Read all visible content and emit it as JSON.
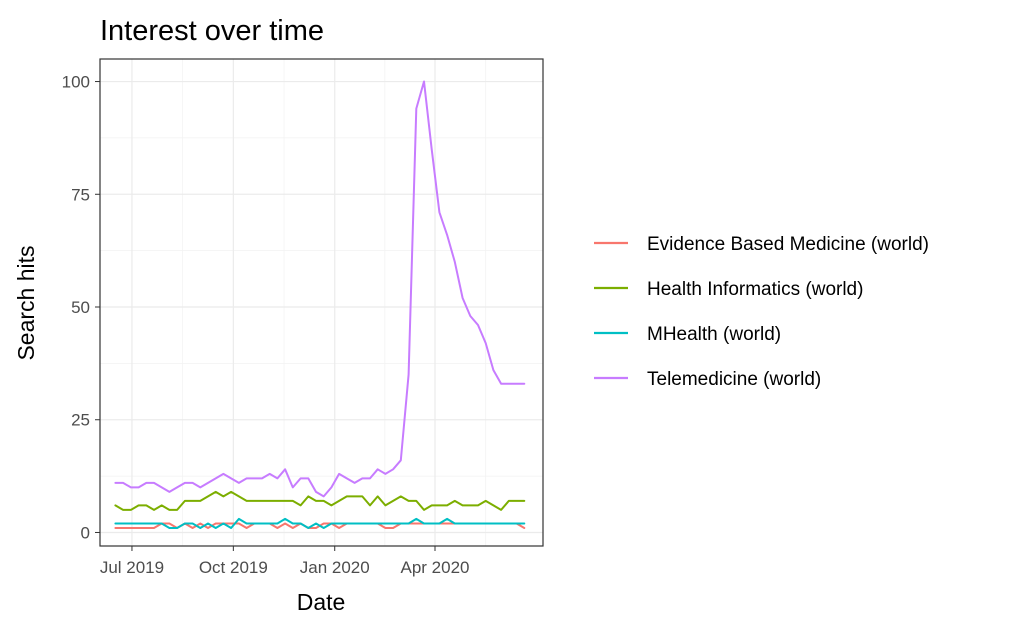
{
  "chart_data": {
    "type": "line",
    "title": "Interest over time",
    "xlabel": "Date",
    "ylabel": "Search hits",
    "xlim": [
      "2019-06-02",
      "2020-07-08"
    ],
    "ylim": [
      -3,
      105
    ],
    "grid": true,
    "legend_position": "right",
    "x_ticks": [
      {
        "date": "2019-07-01",
        "label": "Jul 2019"
      },
      {
        "date": "2019-10-01",
        "label": "Oct 2019"
      },
      {
        "date": "2020-01-01",
        "label": "Jan 2020"
      },
      {
        "date": "2020-04-01",
        "label": "Apr 2020"
      }
    ],
    "y_ticks": [
      0,
      25,
      50,
      75,
      100
    ],
    "x": [
      "2019-06-16",
      "2019-06-23",
      "2019-06-30",
      "2019-07-07",
      "2019-07-14",
      "2019-07-21",
      "2019-07-28",
      "2019-08-04",
      "2019-08-11",
      "2019-08-18",
      "2019-08-25",
      "2019-09-01",
      "2019-09-08",
      "2019-09-15",
      "2019-09-22",
      "2019-09-29",
      "2019-10-06",
      "2019-10-13",
      "2019-10-20",
      "2019-10-27",
      "2019-11-03",
      "2019-11-10",
      "2019-11-17",
      "2019-11-24",
      "2019-12-01",
      "2019-12-08",
      "2019-12-15",
      "2019-12-22",
      "2019-12-29",
      "2020-01-05",
      "2020-01-12",
      "2020-01-19",
      "2020-01-26",
      "2020-02-02",
      "2020-02-09",
      "2020-02-16",
      "2020-02-23",
      "2020-03-01",
      "2020-03-08",
      "2020-03-15",
      "2020-03-22",
      "2020-03-29",
      "2020-04-05",
      "2020-04-12",
      "2020-04-19",
      "2020-04-26",
      "2020-05-03",
      "2020-05-10",
      "2020-05-17",
      "2020-05-24",
      "2020-05-31",
      "2020-06-07",
      "2020-06-14",
      "2020-06-21"
    ],
    "series": [
      {
        "name": "Evidence Based Medicine (world)",
        "color": "#F8766D",
        "values": [
          1,
          1,
          1,
          1,
          1,
          1,
          2,
          2,
          1,
          2,
          1,
          2,
          1,
          2,
          2,
          2,
          2,
          1,
          2,
          2,
          2,
          1,
          2,
          1,
          2,
          1,
          1,
          2,
          2,
          1,
          2,
          2,
          2,
          2,
          2,
          1,
          1,
          2,
          2,
          2,
          2,
          2,
          2,
          2,
          2,
          2,
          2,
          2,
          2,
          2,
          2,
          2,
          2,
          1
        ]
      },
      {
        "name": "Health Informatics (world)",
        "color": "#7CAE00",
        "values": [
          6,
          5,
          5,
          6,
          6,
          5,
          6,
          5,
          5,
          7,
          7,
          7,
          8,
          9,
          8,
          9,
          8,
          7,
          7,
          7,
          7,
          7,
          7,
          7,
          6,
          8,
          7,
          7,
          6,
          7,
          8,
          8,
          8,
          6,
          8,
          6,
          7,
          8,
          7,
          7,
          5,
          6,
          6,
          6,
          7,
          6,
          6,
          6,
          7,
          6,
          5,
          7,
          7,
          7
        ]
      },
      {
        "name": "MHealth (world)",
        "color": "#00BFC4",
        "values": [
          2,
          2,
          2,
          2,
          2,
          2,
          2,
          1,
          1,
          2,
          2,
          1,
          2,
          1,
          2,
          1,
          3,
          2,
          2,
          2,
          2,
          2,
          3,
          2,
          2,
          1,
          2,
          1,
          2,
          2,
          2,
          2,
          2,
          2,
          2,
          2,
          2,
          2,
          2,
          3,
          2,
          2,
          2,
          3,
          2,
          2,
          2,
          2,
          2,
          2,
          2,
          2,
          2,
          2
        ]
      },
      {
        "name": "Telemedicine (world)",
        "color": "#C77CFF",
        "values": [
          11,
          11,
          10,
          10,
          11,
          11,
          10,
          9,
          10,
          11,
          11,
          10,
          11,
          12,
          13,
          12,
          11,
          12,
          12,
          12,
          13,
          12,
          14,
          10,
          12,
          12,
          9,
          8,
          10,
          13,
          12,
          11,
          12,
          12,
          14,
          13,
          14,
          16,
          35,
          94,
          100,
          85,
          71,
          66,
          60,
          52,
          48,
          46,
          42,
          36,
          33,
          33,
          33,
          33
        ]
      }
    ]
  }
}
